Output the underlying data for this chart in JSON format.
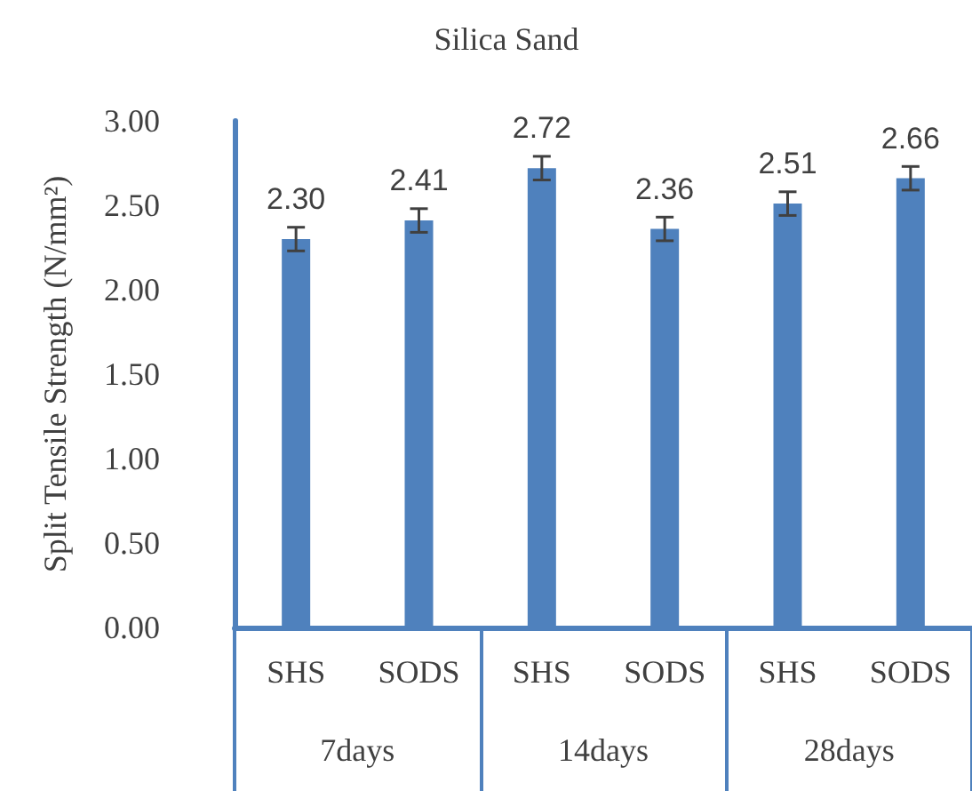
{
  "chart_data": {
    "type": "bar",
    "title": "Silica Sand",
    "ylabel": "Split Tensile Strength (N/mm²)",
    "categories": [
      "SHS",
      "SODS",
      "SHS",
      "SODS",
      "SHS",
      "SODS"
    ],
    "annotations": [
      "7days",
      "14days",
      "28days"
    ],
    "values": [
      2.3,
      2.41,
      2.72,
      2.36,
      2.51,
      2.66
    ],
    "errors": [
      0.07,
      0.07,
      0.07,
      0.07,
      0.07,
      0.07
    ],
    "value_labels": [
      "2.30",
      "2.41",
      "2.72",
      "2.36",
      "2.51",
      "2.66"
    ],
    "color": "#4f81bd",
    "ylim": [
      0,
      3
    ],
    "yticks": [
      {
        "value": 0,
        "label": "0.00"
      },
      {
        "value": 0.5,
        "label": "0.50"
      },
      {
        "value": 1,
        "label": "1.00"
      },
      {
        "value": 1.5,
        "label": "1.50"
      },
      {
        "value": 2,
        "label": "2.00"
      },
      {
        "value": 2.5,
        "label": "2.50"
      },
      {
        "value": 3,
        "label": "3.00"
      }
    ],
    "grid": false
  }
}
